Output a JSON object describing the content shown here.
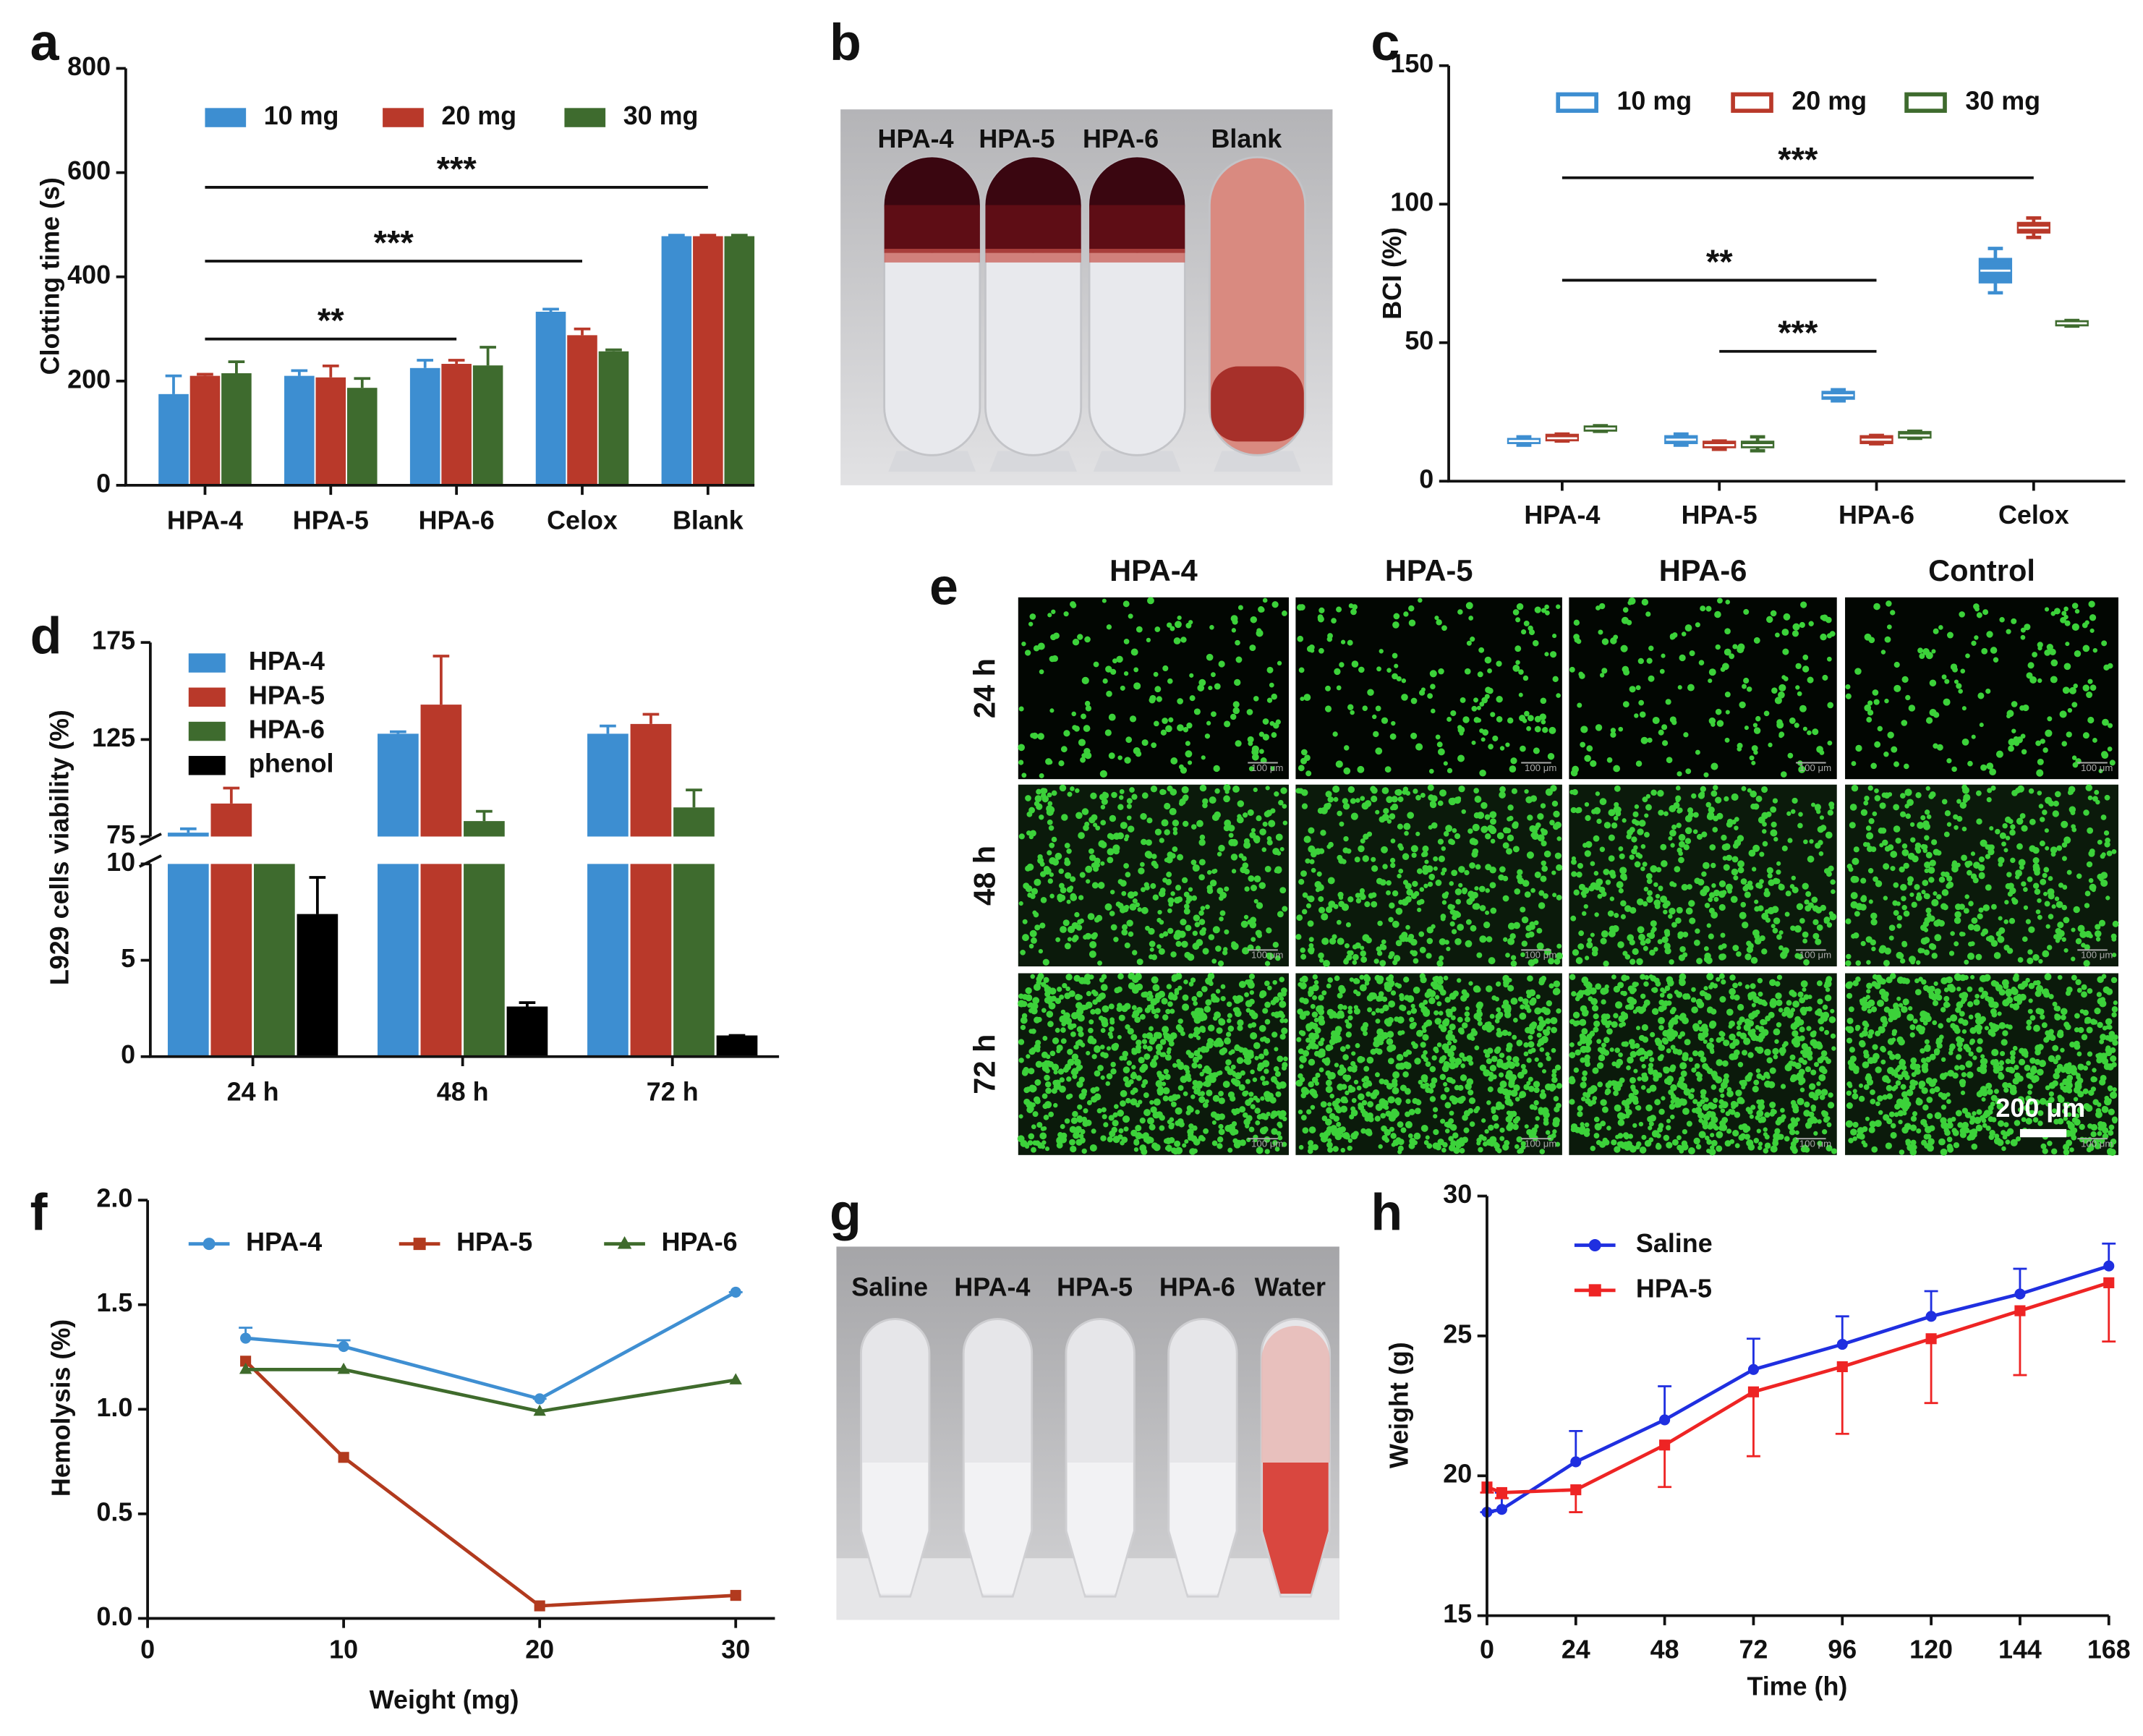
{
  "chart_data": [
    {
      "panel": "a",
      "type": "bar",
      "ylabel": "Clotting time (s)",
      "categories": [
        "HPA-4",
        "HPA-5",
        "HPA-6",
        "Celox",
        "Blank"
      ],
      "series": [
        {
          "name": "10 mg",
          "color": "#3d8ed1",
          "values": [
            175,
            210,
            225,
            333,
            478
          ],
          "errors": [
            35,
            10,
            15,
            5,
            2
          ]
        },
        {
          "name": "20 mg",
          "color": "#b9392a",
          "values": [
            210,
            207,
            233,
            288,
            478
          ],
          "errors": [
            3,
            22,
            7,
            12,
            2
          ]
        },
        {
          "name": "30 mg",
          "color": "#3e6b2e",
          "values": [
            215,
            187,
            230,
            257,
            478
          ],
          "errors": [
            22,
            18,
            35,
            3,
            2
          ]
        }
      ],
      "ylim": [
        0,
        800
      ],
      "yticks": [
        0,
        200,
        400,
        600,
        800
      ],
      "annotations": [
        {
          "text": "***",
          "from": "HPA-4",
          "to": "Blank"
        },
        {
          "text": "***",
          "from": "HPA-4",
          "to": "Celox"
        },
        {
          "text": "**",
          "from": "HPA-4",
          "to": "HPA-6"
        }
      ]
    },
    {
      "panel": "c",
      "type": "box",
      "ylabel": "BCI (%)",
      "categories": [
        "HPA-4",
        "HPA-5",
        "HPA-6",
        "Celox"
      ],
      "series": [
        {
          "name": "10 mg",
          "color": "#3d8ed1",
          "values": [
            [
              13,
              14,
              14.5,
              15,
              16
            ],
            [
              13,
              14,
              15,
              16,
              17
            ],
            [
              29,
              30,
              31,
              32,
              33
            ],
            [
              68,
              72,
              76,
              80,
              84
            ]
          ]
        },
        {
          "name": "20 mg",
          "color": "#b9392a",
          "values": [
            [
              14.5,
              15,
              15.5,
              16.5,
              17
            ],
            [
              11.5,
              12.5,
              13,
              14,
              14.5
            ],
            [
              13.5,
              14,
              15,
              16,
              16.5
            ],
            [
              88,
              90,
              91.5,
              93,
              95
            ]
          ]
        },
        {
          "name": "30 mg",
          "color": "#3e6b2e",
          "values": [
            [
              18,
              18.5,
              19,
              19.5,
              20
            ],
            [
              11,
              12.5,
              13,
              14,
              16
            ],
            [
              15.5,
              16,
              16.5,
              17.5,
              18
            ],
            [
              56,
              56.5,
              57,
              57.5,
              58
            ]
          ]
        }
      ],
      "ylim": [
        0,
        150
      ],
      "yticks": [
        0,
        50,
        100,
        150
      ],
      "annotations": [
        {
          "text": "***",
          "from": "HPA-4",
          "to": "Celox"
        },
        {
          "text": "**",
          "from": "HPA-4",
          "to": "HPA-6"
        },
        {
          "text": "***",
          "from": "HPA-5",
          "to": "HPA-6"
        }
      ]
    },
    {
      "panel": "d",
      "type": "broken_bar",
      "ylabel": "L929 cells viability (%)",
      "categories": [
        "24 h",
        "48 h",
        "72 h"
      ],
      "series": [
        {
          "name": "HPA-4",
          "color": "#3d8ed1",
          "values": [
            77,
            128,
            128
          ],
          "errors": [
            2,
            1,
            4
          ]
        },
        {
          "name": "HPA-5",
          "color": "#b9392a",
          "values": [
            92,
            143,
            133
          ],
          "errors": [
            8,
            25,
            5
          ]
        },
        {
          "name": "HPA-6",
          "color": "#3e6b2e",
          "values": [
            72,
            83,
            90
          ],
          "errors": [
            2,
            5,
            9
          ]
        },
        {
          "name": "phenol",
          "color": "#000000",
          "values": [
            7.4,
            2.6,
            1.1
          ],
          "errors": [
            1.9,
            0.2,
            0
          ]
        }
      ],
      "ylim": [
        0,
        10
      ],
      "yticks": [
        0,
        5,
        10
      ],
      "ylim_upper": [
        75,
        175
      ],
      "yticks_upper": [
        75,
        125,
        175
      ]
    },
    {
      "panel": "f",
      "type": "line",
      "xlabel": "Weight (mg)",
      "ylabel": "Hemolysis (%)",
      "x": [
        5,
        10,
        20,
        30
      ],
      "series": [
        {
          "name": "HPA-4",
          "color": "#3f8fd2",
          "marker": "circle",
          "values": [
            1.34,
            1.3,
            1.05,
            1.56
          ],
          "errors": [
            0.05,
            0.03,
            0,
            0
          ],
          "error_side": "up"
        },
        {
          "name": "HPA-5",
          "color": "#b23a1e",
          "marker": "square",
          "values": [
            1.23,
            0.77,
            0.06,
            0.11
          ]
        },
        {
          "name": "HPA-6",
          "color": "#3f6b2c",
          "marker": "triangle",
          "values": [
            1.19,
            1.19,
            0.99,
            1.14
          ]
        }
      ],
      "xlim": [
        0,
        32
      ],
      "xticks": [
        0,
        10,
        20,
        30
      ],
      "ylim": [
        0,
        2
      ],
      "yticks": [
        {
          "value": 0,
          "label": "0.0"
        },
        {
          "value": 0.5,
          "label": "0.5"
        },
        {
          "value": 1,
          "label": "1.0"
        },
        {
          "value": 1.5,
          "label": "1.5"
        },
        {
          "value": 2,
          "label": "2.0"
        }
      ]
    },
    {
      "panel": "h",
      "type": "line",
      "xlabel": "Time (h)",
      "ylabel": "Weight (g)",
      "x": [
        0,
        4,
        24,
        48,
        72,
        96,
        120,
        144,
        168
      ],
      "series": [
        {
          "name": "Saline",
          "color": "#1f2fe0",
          "marker": "circle",
          "values": [
            18.7,
            18.8,
            20.5,
            22,
            23.8,
            24.7,
            25.7,
            26.5,
            27.5
          ],
          "errors": [
            0,
            0.6,
            1.1,
            1.2,
            1.1,
            1,
            0.9,
            0.9,
            0.8
          ],
          "error_side": "up"
        },
        {
          "name": "HPA-5",
          "color": "#ee2424",
          "marker": "square",
          "values": [
            19.6,
            19.4,
            19.5,
            21.1,
            23,
            23.9,
            24.9,
            25.9,
            26.9
          ],
          "errors": [
            0.2,
            0.2,
            0.8,
            1.5,
            2.3,
            2.4,
            2.3,
            2.3,
            2.1
          ],
          "error_side": "down"
        }
      ],
      "xlim": [
        0,
        168
      ],
      "xticks": [
        0,
        24,
        48,
        72,
        96,
        120,
        144,
        168
      ],
      "ylim": [
        15,
        30
      ],
      "yticks": [
        15,
        20,
        25,
        30
      ]
    }
  ],
  "photos": [
    {
      "panel": "b",
      "labels": [
        "HPA-4",
        "HPA-5",
        "HPA-6",
        "Blank"
      ]
    },
    {
      "panel": "e",
      "columns": [
        "HPA-4",
        "HPA-5",
        "HPA-6",
        "Control"
      ],
      "rows": [
        "24 h",
        "48 h",
        "72 h"
      ],
      "scale_bar": "200 μm",
      "image_scale": "100 μm"
    },
    {
      "panel": "g",
      "labels": [
        "Saline",
        "HPA-4",
        "HPA-5",
        "HPA-6",
        "Water"
      ]
    }
  ]
}
